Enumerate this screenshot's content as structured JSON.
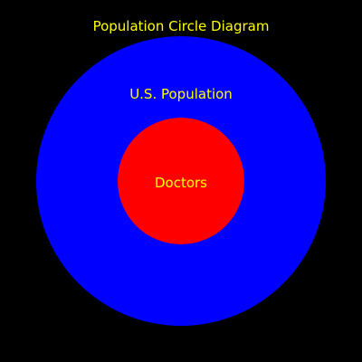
{
  "diagram": {
    "title": "Population Circle Diagram",
    "colors": {
      "background": "#000000",
      "text": "#ffff00",
      "outer_circle": "#0000ff",
      "inner_circle": "#ff0000"
    },
    "outer_circle": {
      "label": "U.S. Population"
    },
    "inner_circle": {
      "label": "Doctors"
    }
  }
}
